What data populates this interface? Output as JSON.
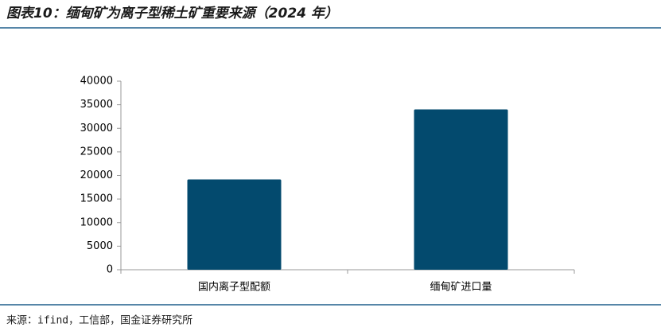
{
  "chart_data": {
    "type": "bar",
    "title": "图表10：缅甸矿为离子型稀土矿重要来源（2024 年）",
    "source": "来源：ifind，工信部，国金证券研究所",
    "categories": [
      "国内离子型配额",
      "缅甸矿进口量"
    ],
    "values": [
      19150,
      34000
    ],
    "color": "#034a6e",
    "ylim": [
      0,
      40000
    ],
    "yticks": [
      0,
      5000,
      10000,
      15000,
      20000,
      25000,
      30000,
      35000,
      40000
    ],
    "grid": false
  }
}
